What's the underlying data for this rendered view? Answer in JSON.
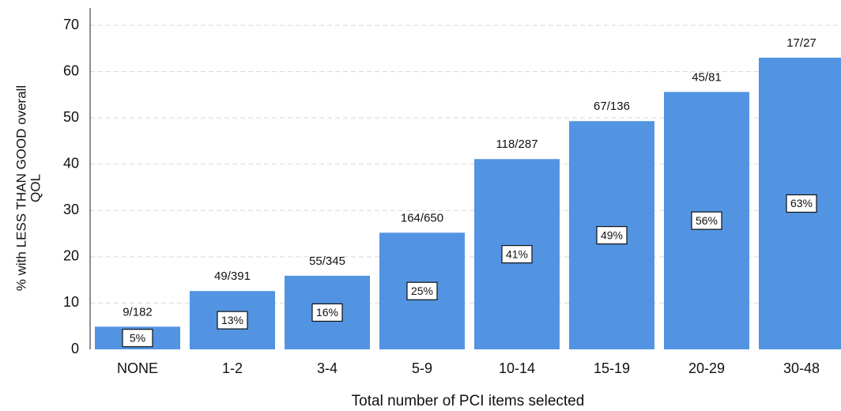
{
  "chart_data": {
    "type": "bar",
    "xlabel": "Total number of PCI items selected",
    "ylabel": [
      "% with LESS THAN GOOD overall",
      "QOL"
    ],
    "categories": [
      "NONE",
      "1-2",
      "3-4",
      "5-9",
      "10-14",
      "15-19",
      "20-29",
      "30-48"
    ],
    "values": [
      4.9,
      12.6,
      15.9,
      25.2,
      41.1,
      49.3,
      55.6,
      63.0
    ],
    "value_labels": [
      "5%",
      "13%",
      "16%",
      "25%",
      "41%",
      "49%",
      "56%",
      "63%"
    ],
    "count_labels": [
      "9/182",
      "49/391",
      "55/345",
      "164/650",
      "118/287",
      "67/136",
      "45/81",
      "17/27"
    ],
    "color": "#5294e2",
    "ylim": [
      0,
      70
    ],
    "yticks": [
      0,
      10,
      20,
      30,
      40,
      50,
      60,
      70
    ],
    "grid": true
  }
}
